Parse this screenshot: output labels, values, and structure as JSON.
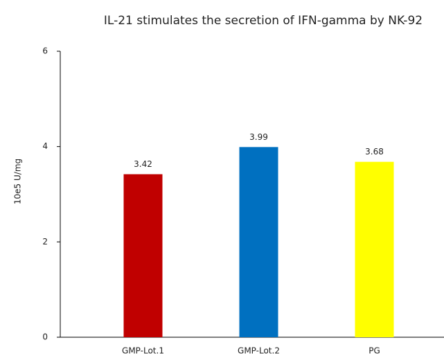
{
  "chart_data": {
    "type": "bar",
    "title": "IL-21  stimulates the secretion of IFN-gamma by NK-92",
    "y_label": "10e5 U/mg",
    "categories": [
      "GMP-Lot.1",
      "GMP-Lot.2",
      "PG"
    ],
    "values": [
      3.42,
      3.99,
      3.68
    ],
    "colors": [
      "#c00000",
      "#0070c0",
      "#ffff00"
    ],
    "ylim": [
      0,
      6
    ],
    "yticks": [
      0,
      2,
      4,
      6
    ],
    "grid": false
  }
}
